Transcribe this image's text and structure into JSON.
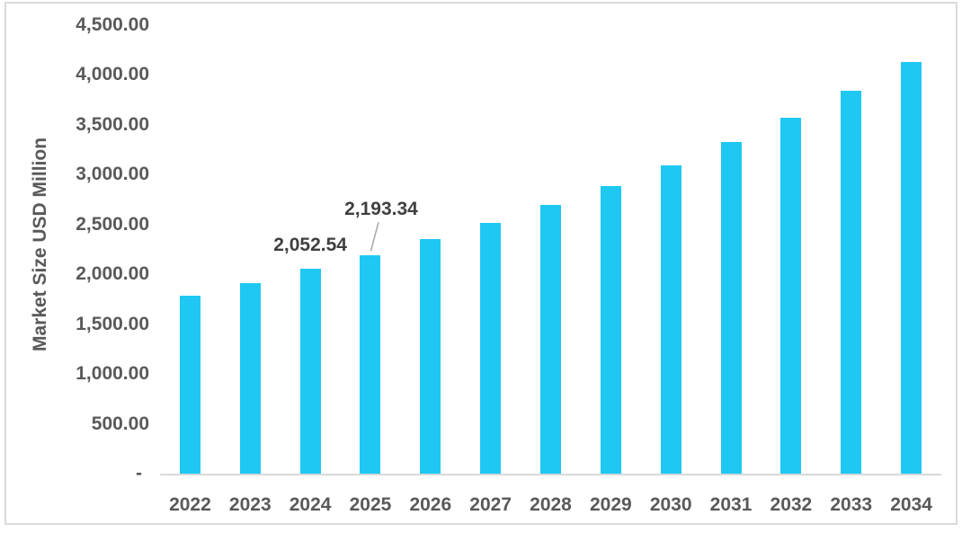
{
  "chart_data": {
    "type": "bar",
    "title": "",
    "xlabel": "",
    "ylabel": "Market Size USD Million",
    "categories": [
      "2022",
      "2023",
      "2024",
      "2025",
      "2026",
      "2027",
      "2028",
      "2029",
      "2030",
      "2031",
      "2032",
      "2033",
      "2034"
    ],
    "values": [
      1785,
      1915,
      2052.54,
      2193.34,
      2355,
      2517,
      2696,
      2887,
      3094,
      3328,
      3571,
      3842,
      4130
    ],
    "ylim": [
      0,
      4500
    ],
    "ytick_step": 500,
    "ytick_labels": [
      "4,500.00",
      "4,000.00",
      "3,500.00",
      "3,000.00",
      "2,500.00",
      "2,000.00",
      "1,500.00",
      "1,000.00",
      "500.00",
      "-"
    ],
    "grid": false,
    "legend": false,
    "bar_color": "#1ec8f3",
    "axis_line_color": "#d9d9d9",
    "tick_text_color": "#595959",
    "data_label_color": "#3f3f3f",
    "leader_line_color": "#a6a6a6",
    "data_labels": [
      {
        "category": "2024",
        "text": "2,052.54",
        "leader": false
      },
      {
        "category": "2025",
        "text": "2,193.34",
        "leader": true
      }
    ]
  }
}
